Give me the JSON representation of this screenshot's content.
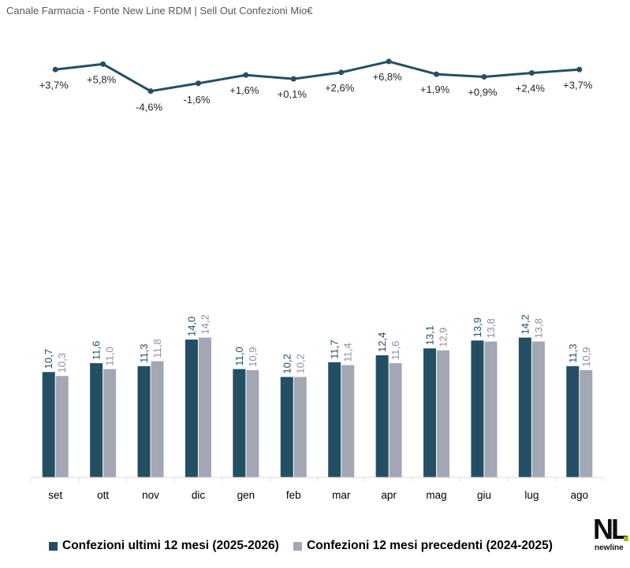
{
  "subtitle": "Canale Farmacia - Fonte New Line RDM | Sell Out Confezioni Mio€",
  "logo": {
    "mark": "NL",
    "wordmark": "newline"
  },
  "colors": {
    "current": "#244f63",
    "previous": "#a3a7b4",
    "line": "#244f63",
    "axis": "#d9d9d9",
    "label_previous": "#8c8f99"
  },
  "chart_data": [
    {
      "type": "bar",
      "categories": [
        "set",
        "ott",
        "nov",
        "dic",
        "gen",
        "feb",
        "mar",
        "apr",
        "mag",
        "giu",
        "lug",
        "ago"
      ],
      "series": [
        {
          "name": "Confezioni ultimi 12 mesi (2025-2026)",
          "values": [
            10.7,
            11.6,
            11.3,
            14.0,
            11.0,
            10.2,
            11.7,
            12.4,
            13.1,
            13.9,
            14.2,
            11.3
          ],
          "labels": [
            "10,7",
            "11,6",
            "11,3",
            "14,0",
            "11,0",
            "10,2",
            "11,7",
            "12,4",
            "13,1",
            "13,9",
            "14,2",
            "11,3"
          ]
        },
        {
          "name": "Confezioni 12 mesi precedenti (2024-2025)",
          "values": [
            10.3,
            11.0,
            11.8,
            14.2,
            10.9,
            10.2,
            11.4,
            11.6,
            12.9,
            13.8,
            13.8,
            10.9
          ],
          "labels": [
            "10,3",
            "11,0",
            "11,8",
            "14,2",
            "10,9",
            "10,2",
            "11,4",
            "11,6",
            "12,9",
            "13,8",
            "13,8",
            "10,9"
          ]
        }
      ],
      "legend_position": "bottom"
    },
    {
      "type": "line",
      "categories": [
        "set",
        "ott",
        "nov",
        "dic",
        "gen",
        "feb",
        "mar",
        "apr",
        "mag",
        "giu",
        "lug",
        "ago"
      ],
      "values": [
        3.7,
        5.8,
        -4.6,
        -1.6,
        1.6,
        0.1,
        2.6,
        6.8,
        1.9,
        0.9,
        2.4,
        3.7
      ],
      "labels": [
        "+3,7%",
        "+5,8%",
        "-4,6%",
        "-1,6%",
        "+1,6%",
        "+0,1%",
        "+2,6%",
        "+6,8%",
        "+1,9%",
        "+0,9%",
        "+2,4%",
        "+3,7%"
      ]
    }
  ]
}
